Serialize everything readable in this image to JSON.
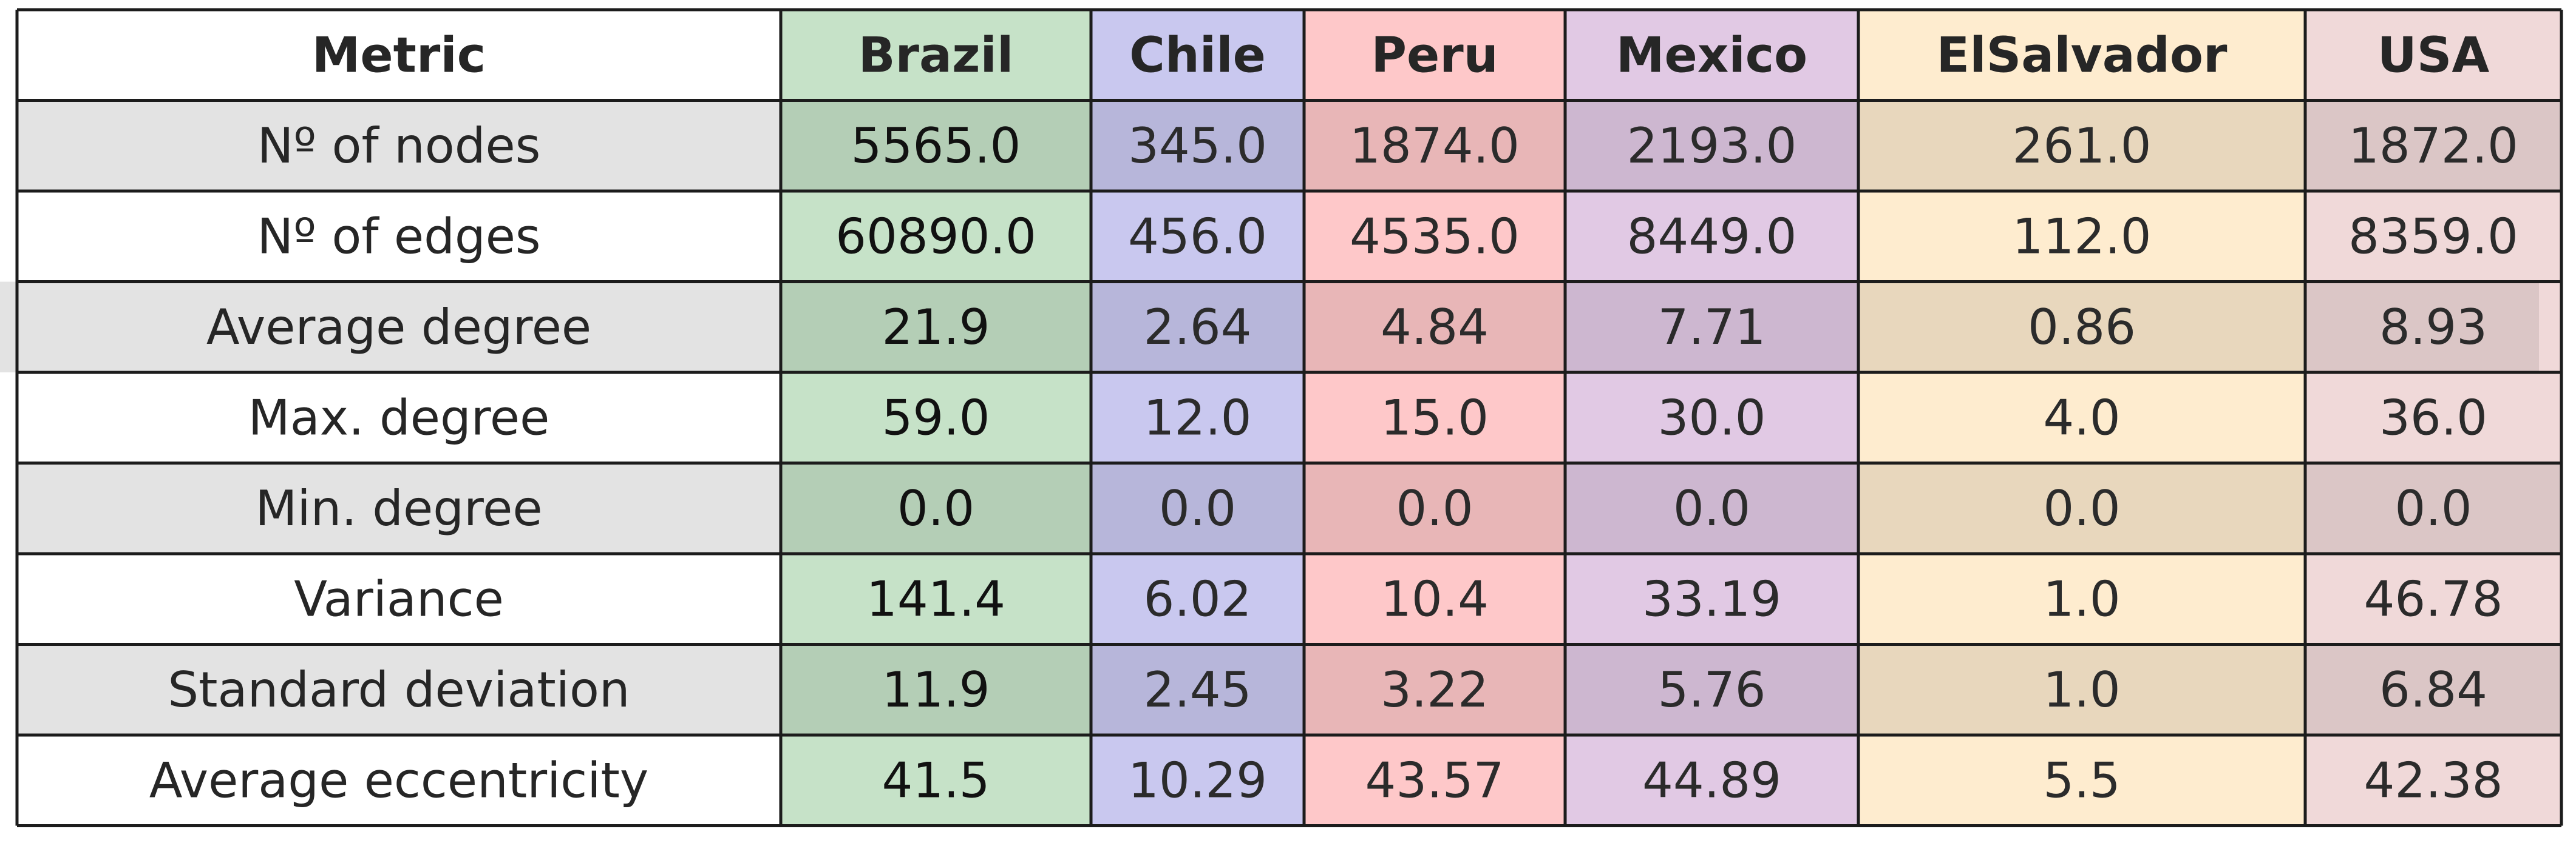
{
  "chart_data": {
    "type": "table",
    "columns": [
      "Metric",
      "Brazil",
      "Chile",
      "Peru",
      "Mexico",
      "ElSalvador",
      "USA"
    ],
    "column_colors": [
      "#ffffff",
      "#c6e2c8",
      "#c9c8ef",
      "#fec8c9",
      "#e1c9e4",
      "#feeccf",
      "#f0d9d9"
    ],
    "row_shading": "alternating-light-gray",
    "rows": [
      {
        "metric": "Nº of nodes",
        "values": [
          "5565.0",
          "345.0",
          "1874.0",
          "2193.0",
          "261.0",
          "1872.0"
        ]
      },
      {
        "metric": "Nº of edges",
        "values": [
          "60890.0",
          "456.0",
          "4535.0",
          "8449.0",
          "112.0",
          "8359.0"
        ]
      },
      {
        "metric": "Average degree",
        "values": [
          "21.9",
          "2.64",
          "4.84",
          "7.71",
          "0.86",
          "8.93"
        ]
      },
      {
        "metric": "Max. degree",
        "values": [
          "59.0",
          "12.0",
          "15.0",
          "30.0",
          "4.0",
          "36.0"
        ]
      },
      {
        "metric": "Min. degree",
        "values": [
          "0.0",
          "0.0",
          "0.0",
          "0.0",
          "0.0",
          "0.0"
        ]
      },
      {
        "metric": "Variance",
        "values": [
          "141.4",
          "6.02",
          "10.4",
          "33.19",
          "1.0",
          "46.78"
        ]
      },
      {
        "metric": "Standard deviation",
        "values": [
          "11.9",
          "2.45",
          "3.22",
          "5.76",
          "1.0",
          "6.84"
        ]
      },
      {
        "metric": "Average eccentricity",
        "values": [
          "41.5",
          "10.29",
          "43.57",
          "44.89",
          "5.5",
          "42.38"
        ]
      }
    ]
  }
}
